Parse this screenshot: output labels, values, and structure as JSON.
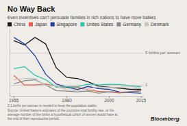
{
  "chart_data": {
    "type": "line",
    "title": "No Way Back",
    "subtitle": "Even incentives can’t persuade families in rich nations to have more babies",
    "footnote": "2.1 births per woman is needed to keep the population stable.\nSource: United Nations estimates of the countries total fertility rate, or the\naverage number of live births a hypothetical cohort of women would have at\nthe end of their reproductive period.",
    "branding": "Bloomberg",
    "annotations": [
      {
        "text": "5 births per woman",
        "y": 5.0
      },
      {
        "text": "2",
        "y": 2.0
      }
    ],
    "x": [
      1955,
      1960,
      1965,
      1970,
      1975,
      1980,
      1985,
      1990,
      1995,
      2000,
      2005,
      2010,
      2015
    ],
    "series": [
      {
        "name": "China",
        "color": "#1a1a1a",
        "values": [
          6.1,
          5.7,
          6.4,
          5.8,
          3.6,
          2.7,
          2.6,
          2.3,
          1.9,
          1.8,
          1.7,
          1.6,
          1.6
        ]
      },
      {
        "name": "Japan",
        "color": "#e8604c",
        "values": [
          2.9,
          2.0,
          2.0,
          2.1,
          1.9,
          1.75,
          1.8,
          1.54,
          1.42,
          1.36,
          1.26,
          1.39,
          1.46
        ]
      },
      {
        "name": "Singapore",
        "color": "#1e3fa0",
        "values": [
          6.4,
          5.8,
          4.7,
          3.0,
          2.1,
          1.8,
          1.6,
          1.87,
          1.67,
          1.6,
          1.35,
          1.29,
          1.24
        ]
      },
      {
        "name": "United States",
        "color": "#2ec4b0",
        "values": [
          3.5,
          3.7,
          2.9,
          2.5,
          1.8,
          1.84,
          1.84,
          2.08,
          2.02,
          2.06,
          2.05,
          1.93,
          1.84
        ]
      },
      {
        "name": "Germany",
        "color": "#888888",
        "values": [
          2.1,
          2.4,
          2.5,
          2.03,
          1.48,
          1.44,
          1.37,
          1.45,
          1.25,
          1.38,
          1.34,
          1.39,
          1.5
        ]
      },
      {
        "name": "Denmark",
        "color": "#c8c8c0",
        "values": [
          2.5,
          2.6,
          2.6,
          1.95,
          1.92,
          1.55,
          1.45,
          1.67,
          1.81,
          1.77,
          1.8,
          1.87,
          1.7
        ]
      }
    ],
    "xlim": [
      1953,
      2016
    ],
    "ylim": [
      1.0,
      7.2
    ],
    "xticks": [
      1955,
      1980,
      2000,
      2015
    ],
    "tick_labels": "x",
    "grid": false,
    "legend": "top"
  }
}
